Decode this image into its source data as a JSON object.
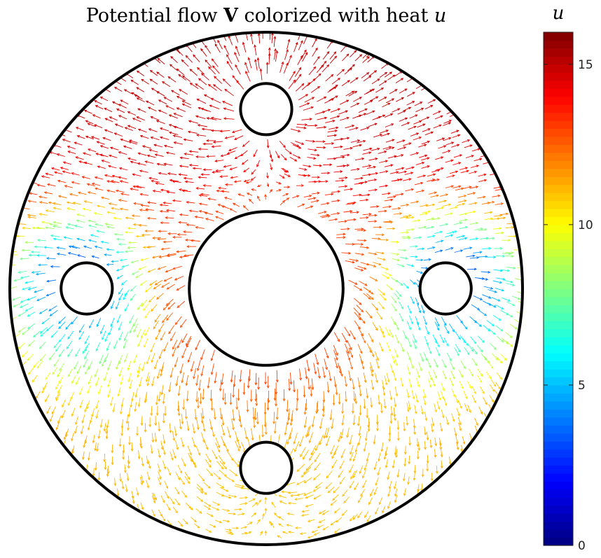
{
  "chart_data": {
    "type": "quiver",
    "title": {
      "part1": "Potential flow ",
      "bold_symbol": "V",
      "part2": " colorized with heat ",
      "italic_symbol": "u"
    },
    "colorbar": {
      "label": "u",
      "colormap": "jet",
      "range": [
        0,
        16
      ],
      "ticks": [
        {
          "value": 0,
          "label": "0"
        },
        {
          "value": 5,
          "label": "5"
        },
        {
          "value": 10,
          "label": "10"
        },
        {
          "value": 15,
          "label": "15"
        }
      ]
    },
    "domain": {
      "shape": "annulus with holes",
      "outer_radius": 1.0,
      "holes": [
        {
          "name": "center",
          "cx": 0.0,
          "cy": 0.0,
          "r": 0.3
        },
        {
          "name": "top",
          "cx": 0.0,
          "cy": 0.7,
          "r": 0.1
        },
        {
          "name": "bottom",
          "cx": 0.0,
          "cy": -0.7,
          "r": 0.1
        },
        {
          "name": "left",
          "cx": -0.7,
          "cy": 0.0,
          "r": 0.1
        },
        {
          "name": "right",
          "cx": 0.7,
          "cy": 0.0,
          "r": 0.1
        }
      ]
    },
    "heat_field": {
      "description_values": {
        "top_hole": 14.5,
        "outer_boundary_upper": 15,
        "center_hole": 13,
        "bottom_hole": 11.5,
        "left_hole": 3,
        "right_hole": 3
      }
    },
    "grid": false,
    "axes_visible": false
  }
}
